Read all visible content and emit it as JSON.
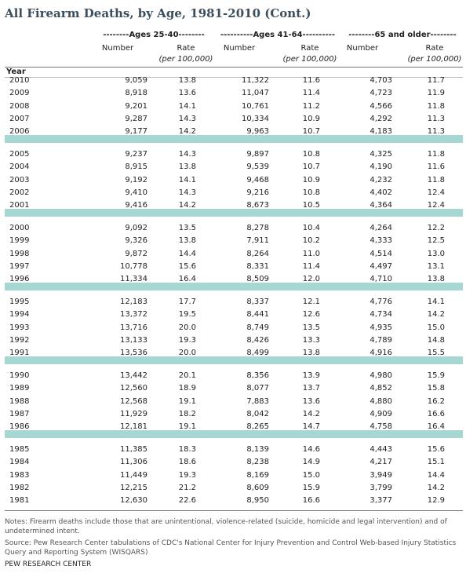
{
  "title": "All Firearm Deaths, by Age, 1981-2010 (Cont.)",
  "groups": [
    "--------Ages 25-40--------",
    "----------Ages 41-64----------",
    "--------65 and older--------"
  ],
  "number_label": "Number",
  "rate_label": "Rate",
  "rate_unit": "(per 100,000)",
  "year_label": "Year",
  "rows": [
    [
      "2010",
      "9,059",
      "13.8",
      "11,322",
      "11.6",
      "4,703",
      "11.7"
    ],
    [
      "2009",
      "8,918",
      "13.6",
      "11,047",
      "11.4",
      "4,723",
      "11.9"
    ],
    [
      "2008",
      "9,201",
      "14.1",
      "10,761",
      "11.2",
      "4,566",
      "11.8"
    ],
    [
      "2007",
      "9,287",
      "14.3",
      "10,334",
      "10.9",
      "4,292",
      "11.3"
    ],
    [
      "2006",
      "9,177",
      "14.2",
      "9,963",
      "10.7",
      "4,183",
      "11.3"
    ],
    [
      "2005",
      "9,237",
      "14.3",
      "9,897",
      "10.8",
      "4,325",
      "11.8"
    ],
    [
      "2004",
      "8,915",
      "13.8",
      "9,539",
      "10.7",
      "4,190",
      "11.6"
    ],
    [
      "2003",
      "9,192",
      "14.1",
      "9,468",
      "10.9",
      "4,232",
      "11.8"
    ],
    [
      "2002",
      "9,410",
      "14.3",
      "9,216",
      "10.8",
      "4,402",
      "12.4"
    ],
    [
      "2001",
      "9,416",
      "14.2",
      "8,673",
      "10.5",
      "4,364",
      "12.4"
    ],
    [
      "2000",
      "9,092",
      "13.5",
      "8,278",
      "10.4",
      "4,264",
      "12.2"
    ],
    [
      "1999",
      "9,326",
      "13.8",
      "7,911",
      "10.2",
      "4,333",
      "12.5"
    ],
    [
      "1998",
      "9,872",
      "14.4",
      "8,264",
      "11.0",
      "4,514",
      "13.0"
    ],
    [
      "1997",
      "10,778",
      "15.6",
      "8,331",
      "11.4",
      "4,497",
      "13.1"
    ],
    [
      "1996",
      "11,334",
      "16.4",
      "8,509",
      "12.0",
      "4,710",
      "13.8"
    ],
    [
      "1995",
      "12,183",
      "17.7",
      "8,337",
      "12.1",
      "4,776",
      "14.1"
    ],
    [
      "1994",
      "13,372",
      "19.5",
      "8,441",
      "12.6",
      "4,734",
      "14.2"
    ],
    [
      "1993",
      "13,716",
      "20.0",
      "8,749",
      "13.5",
      "4,935",
      "15.0"
    ],
    [
      "1992",
      "13,133",
      "19.3",
      "8,426",
      "13.3",
      "4,789",
      "14.8"
    ],
    [
      "1991",
      "13,536",
      "20.0",
      "8,499",
      "13.8",
      "4,916",
      "15.5"
    ],
    [
      "1990",
      "13,442",
      "20.1",
      "8,356",
      "13.9",
      "4,980",
      "15.9"
    ],
    [
      "1989",
      "12,560",
      "18.9",
      "8,077",
      "13.7",
      "4,852",
      "15.8"
    ],
    [
      "1988",
      "12,568",
      "19.1",
      "7,883",
      "13.6",
      "4,880",
      "16.2"
    ],
    [
      "1987",
      "11,929",
      "18.2",
      "8,042",
      "14.2",
      "4,909",
      "16.6"
    ],
    [
      "1986",
      "12,181",
      "19.1",
      "8,265",
      "14.7",
      "4,758",
      "16.4"
    ],
    [
      "1985",
      "11,385",
      "18.3",
      "8,139",
      "14.6",
      "4,443",
      "15.6"
    ],
    [
      "1984",
      "11,306",
      "18.6",
      "8,238",
      "14.9",
      "4,217",
      "15.1"
    ],
    [
      "1983",
      "11,449",
      "19.3",
      "8,169",
      "15.0",
      "3,949",
      "14.4"
    ],
    [
      "1982",
      "12,215",
      "21.2",
      "8,609",
      "15.9",
      "3,799",
      "14.2"
    ],
    [
      "1981",
      "12,630",
      "22.6",
      "8,950",
      "16.6",
      "3,377",
      "12.9"
    ]
  ],
  "notes": "Notes: Firearm deaths include those that are unintentional, violence-related (suicide, homicide and legal intervention) and of undetermined intent.",
  "source": "Source: Pew Research Center tabulations of CDC's National Center for Injury Prevention and Control Web-based Injury Statistics Query and Reporting System (WISQARS)",
  "footer": "PEW RESEARCH CENTER"
}
